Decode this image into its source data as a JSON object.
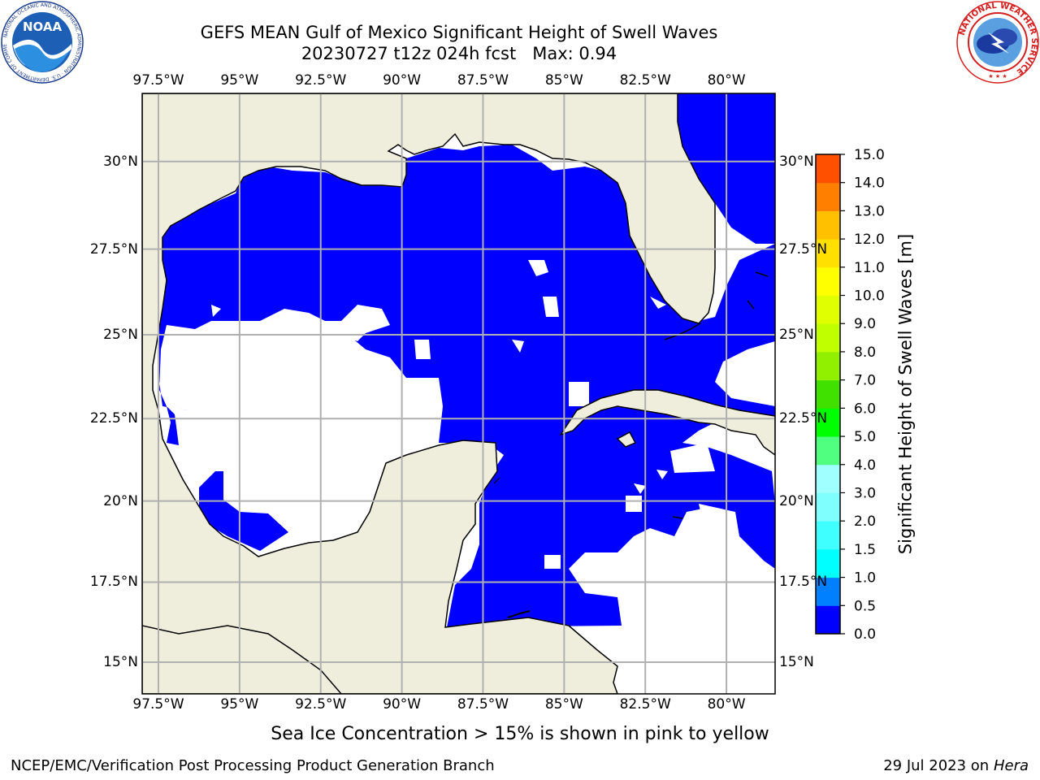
{
  "title": {
    "line1": "GEFS MEAN Gulf of Mexico Significant Height of Swell Waves",
    "line2": "20230727 t12z 024h fcst   Max: 0.94"
  },
  "map": {
    "lon_range": [
      -98,
      -78.5
    ],
    "lat_range": [
      14,
      31.9
    ],
    "lon_ticks": [
      "97.5°W",
      "95°W",
      "92.5°W",
      "90°W",
      "87.5°W",
      "85°W",
      "82.5°W",
      "80°W"
    ],
    "lon_tick_values": [
      -97.5,
      -95,
      -92.5,
      -90,
      -87.5,
      -85,
      -82.5,
      -80
    ],
    "lat_ticks": [
      "30°N",
      "27.5°N",
      "25°N",
      "22.5°N",
      "20°N",
      "17.5°N",
      "15°N"
    ],
    "lat_tick_values": [
      30,
      27.5,
      25,
      22.5,
      20,
      17.5,
      15
    ],
    "land_color": "#efeedd",
    "ocean_zero_color": "#ffffff",
    "swell_0_0_5_color": "#0000ff",
    "swell_0_5_1_color": "#0080ff",
    "grid_color": "#b0b0b0"
  },
  "colorbar": {
    "label": "Significant Height of Swell Waves [m]",
    "tick_labels": [
      "0.0",
      "0.5",
      "1.0",
      "1.5",
      "2.0",
      "3.0",
      "4.0",
      "5.0",
      "6.0",
      "7.0",
      "8.0",
      "9.0",
      "10.0",
      "11.0",
      "12.0",
      "13.0",
      "14.0",
      "15.0"
    ],
    "colors": [
      "#0000ff",
      "#0080ff",
      "#00ffff",
      "#40ffff",
      "#80ffff",
      "#a0ffff",
      "#50ff80",
      "#00ff00",
      "#40e000",
      "#90f000",
      "#c0ff00",
      "#e0ff00",
      "#ffff00",
      "#ffe000",
      "#ffc000",
      "#ff8000",
      "#ff5000",
      "#ff2000",
      "#ff0000"
    ]
  },
  "note": "Sea Ice Concentration > 15% is shown in pink to yellow",
  "footer": {
    "left": "NCEP/EMC/Verification Post Processing Product Generation Branch",
    "right_date": "29 Jul 2023 on ",
    "right_host": "Hera"
  },
  "logos": {
    "noaa_text": "NOAA",
    "noaa_ring": "NATIONAL OCEANIC AND ATMOSPHERIC ADMINISTRATION · U.S. DEPARTMENT OF COMMERCE",
    "nws_ring": "NATIONAL WEATHER SERVICE"
  }
}
